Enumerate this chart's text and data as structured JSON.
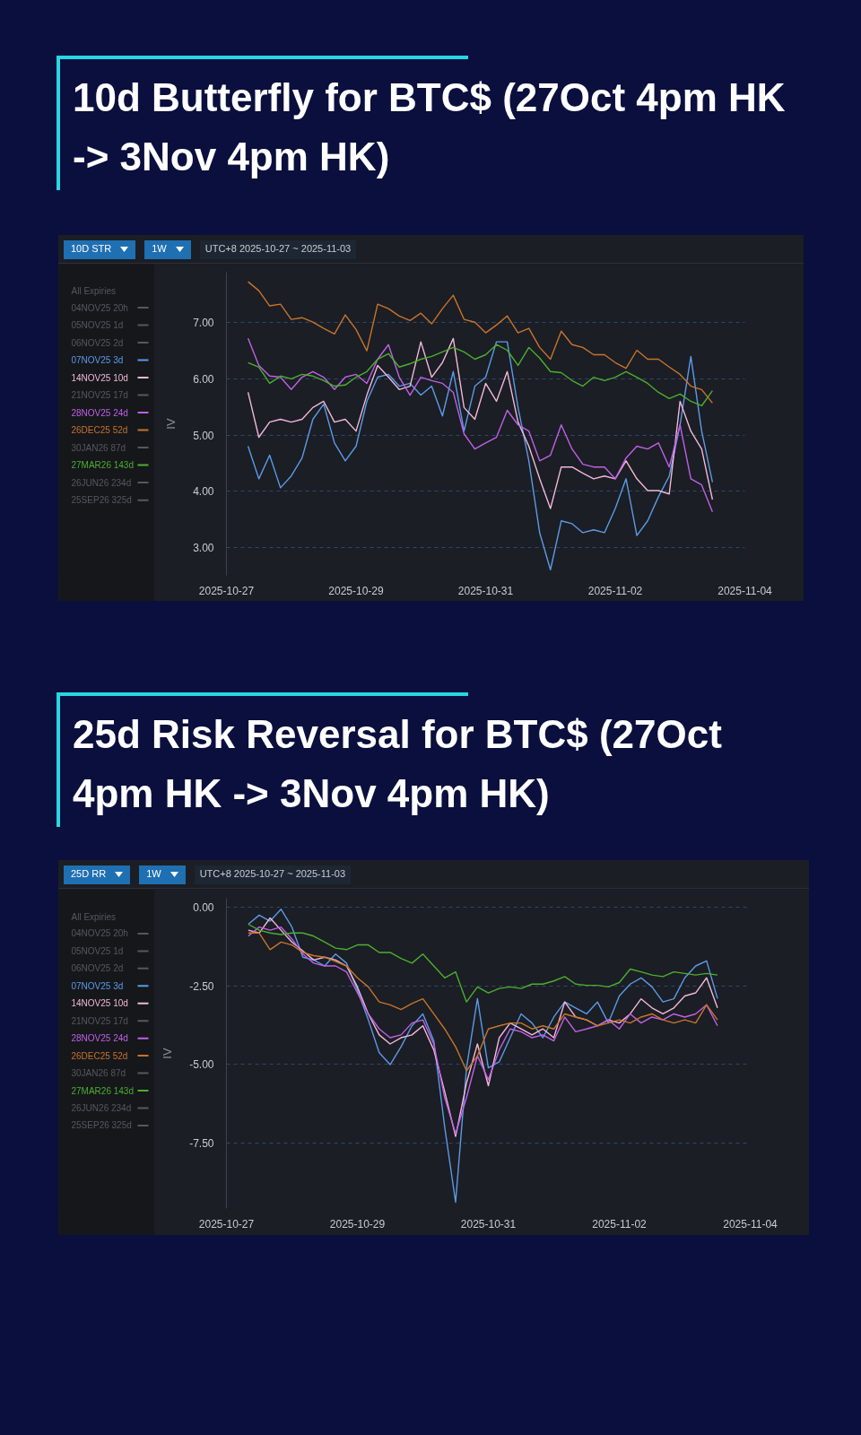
{
  "chart_data": [
    {
      "type": "line",
      "title": "10d Butterfly for BTC$ (27Oct 4pm HK -> 3Nov 4pm HK)",
      "ylabel": "IV",
      "annotations": [
        "10D STR",
        "1W",
        "UTC+8 2025-10-27 ~ 2025-11-03",
        "All Expiries"
      ],
      "x": [
        "2025-10-27T08:00",
        "2025-10-27T12:00",
        "2025-10-27T16:00",
        "2025-10-27T20:00",
        "2025-10-28T00:00",
        "2025-10-28T04:00",
        "2025-10-28T08:00",
        "2025-10-28T12:00",
        "2025-10-28T16:00",
        "2025-10-28T20:00",
        "2025-10-29T00:00",
        "2025-10-29T04:00",
        "2025-10-29T08:00",
        "2025-10-29T12:00",
        "2025-10-29T16:00",
        "2025-10-29T20:00",
        "2025-10-30T00:00",
        "2025-10-30T04:00",
        "2025-10-30T08:00",
        "2025-10-30T12:00",
        "2025-10-30T16:00",
        "2025-10-30T20:00",
        "2025-10-31T00:00",
        "2025-10-31T04:00",
        "2025-10-31T08:00",
        "2025-10-31T12:00",
        "2025-10-31T16:00",
        "2025-10-31T20:00",
        "2025-11-01T00:00",
        "2025-11-01T04:00",
        "2025-11-01T08:00",
        "2025-11-01T12:00",
        "2025-11-01T16:00",
        "2025-11-01T20:00",
        "2025-11-02T00:00",
        "2025-11-02T04:00",
        "2025-11-02T08:00",
        "2025-11-02T12:00",
        "2025-11-02T16:00",
        "2025-11-02T20:00",
        "2025-11-03T00:00",
        "2025-11-03T04:00",
        "2025-11-03T08:00",
        "2025-11-03T12:00"
      ],
      "xlim": [
        "2025-10-27",
        "2025-11-04"
      ],
      "xticks": [
        "2025-10-27",
        "2025-10-29",
        "2025-10-31",
        "2025-11-02",
        "2025-11-04"
      ],
      "ylim": [
        2.5,
        7.9
      ],
      "yticks": [
        {
          "value": 3,
          "label": "3.00"
        },
        {
          "value": 4,
          "label": "4.00"
        },
        {
          "value": 5,
          "label": "5.00"
        },
        {
          "value": 6,
          "label": "6.00"
        },
        {
          "value": 7,
          "label": "7.00"
        }
      ],
      "grid": "y",
      "legend": "left",
      "series": [
        {
          "name": "04NOV25 20h",
          "color": "#55585f",
          "values": [
            null,
            null,
            null,
            null,
            null,
            null,
            null,
            null,
            null,
            null,
            null,
            null,
            null,
            null,
            null,
            null,
            null,
            null,
            null,
            null,
            null,
            null,
            null,
            null,
            null,
            null,
            null,
            null,
            null,
            null,
            null,
            null,
            null,
            null,
            null,
            null,
            null,
            null,
            null,
            null,
            null,
            null,
            null,
            null
          ]
        },
        {
          "name": "05NOV25 1d",
          "color": "#55585f",
          "values": [
            null,
            null,
            null,
            null,
            null,
            null,
            null,
            null,
            null,
            null,
            null,
            null,
            null,
            null,
            null,
            null,
            null,
            null,
            null,
            null,
            null,
            null,
            null,
            null,
            null,
            null,
            null,
            null,
            null,
            null,
            null,
            null,
            null,
            null,
            null,
            null,
            null,
            null,
            null,
            null,
            null,
            null,
            null,
            null
          ]
        },
        {
          "name": "06NOV25 2d",
          "color": "#55585f",
          "values": [
            null,
            null,
            null,
            null,
            null,
            null,
            null,
            null,
            null,
            null,
            null,
            null,
            null,
            null,
            null,
            null,
            null,
            null,
            null,
            null,
            null,
            null,
            null,
            null,
            null,
            null,
            null,
            null,
            null,
            null,
            null,
            null,
            null,
            null,
            null,
            null,
            null,
            null,
            null,
            null,
            null,
            null,
            null,
            null
          ]
        },
        {
          "name": "07NOV25 3d",
          "color": "#5b9ae8",
          "values": [
            4.8,
            4.22,
            4.64,
            4.06,
            4.27,
            4.59,
            5.28,
            5.55,
            4.86,
            4.54,
            4.8,
            5.6,
            6.03,
            6.08,
            5.87,
            5.92,
            5.71,
            5.87,
            5.34,
            6.13,
            5.07,
            5.87,
            6.03,
            6.66,
            6.66,
            5.49,
            4.54,
            3.26,
            2.6,
            3.47,
            3.42,
            3.26,
            3.31,
            3.26,
            3.69,
            4.22,
            3.21,
            3.47,
            3.9,
            4.27,
            5.18,
            6.4,
            5.07,
            4.16
          ]
        },
        {
          "name": "14NOV25 10d",
          "color": "#f2b8d8",
          "values": [
            5.76,
            4.96,
            5.23,
            5.28,
            5.23,
            5.28,
            5.49,
            5.6,
            5.23,
            5.28,
            5.07,
            5.71,
            6.24,
            6.03,
            5.81,
            5.87,
            6.66,
            6.03,
            6.29,
            6.72,
            5.49,
            5.28,
            5.92,
            5.6,
            6.13,
            5.23,
            4.8,
            4.22,
            3.69,
            4.43,
            4.43,
            4.32,
            4.22,
            4.27,
            4.22,
            4.54,
            4.22,
            4.01,
            4.01,
            3.95,
            5.6,
            5.07,
            4.75,
            3.85
          ]
        },
        {
          "name": "21NOV25 17d",
          "color": "#55585f",
          "values": [
            null,
            null,
            null,
            null,
            null,
            null,
            null,
            null,
            null,
            null,
            null,
            null,
            null,
            null,
            null,
            null,
            null,
            null,
            null,
            null,
            null,
            null,
            null,
            null,
            null,
            null,
            null,
            null,
            null,
            null,
            null,
            null,
            null,
            null,
            null,
            null,
            null,
            null,
            null,
            null,
            null,
            null,
            null,
            null
          ]
        },
        {
          "name": "28NOV25 24d",
          "color": "#c060e6",
          "values": [
            6.72,
            6.24,
            6.05,
            6.03,
            5.81,
            6.03,
            6.13,
            6.03,
            5.81,
            6.03,
            6.08,
            5.92,
            6.35,
            6.61,
            6.03,
            5.71,
            6.03,
            5.97,
            5.92,
            5.76,
            5.02,
            4.75,
            4.86,
            4.96,
            5.44,
            5.18,
            5.07,
            4.54,
            4.64,
            5.18,
            4.75,
            4.48,
            4.43,
            4.43,
            4.22,
            4.59,
            4.8,
            4.75,
            4.86,
            4.43,
            5.18,
            4.22,
            4.11,
            3.63
          ]
        },
        {
          "name": "26DEC25 52d",
          "color": "#c8742c",
          "values": [
            7.73,
            7.57,
            7.3,
            7.33,
            7.06,
            7.09,
            7.01,
            6.9,
            6.8,
            7.14,
            6.88,
            6.5,
            7.33,
            7.25,
            7.12,
            7.04,
            7.17,
            6.98,
            7.25,
            7.49,
            7.06,
            7.01,
            6.82,
            6.96,
            7.12,
            6.82,
            6.9,
            6.56,
            6.35,
            6.85,
            6.61,
            6.56,
            6.43,
            6.43,
            6.29,
            6.19,
            6.51,
            6.35,
            6.35,
            6.21,
            6.08,
            5.87,
            5.81,
            5.57
          ]
        },
        {
          "name": "30JAN26 87d",
          "color": "#55585f",
          "values": [
            null,
            null,
            null,
            null,
            null,
            null,
            null,
            null,
            null,
            null,
            null,
            null,
            null,
            null,
            null,
            null,
            null,
            null,
            null,
            null,
            null,
            null,
            null,
            null,
            null,
            null,
            null,
            null,
            null,
            null,
            null,
            null,
            null,
            null,
            null,
            null,
            null,
            null,
            null,
            null,
            null,
            null,
            null,
            null
          ]
        },
        {
          "name": "27MAR26 143d",
          "color": "#4cae2e",
          "values": [
            6.29,
            6.21,
            5.92,
            6.05,
            6.0,
            6.08,
            6.05,
            5.97,
            5.87,
            5.89,
            6.03,
            6.13,
            6.35,
            6.45,
            6.21,
            6.27,
            6.35,
            6.4,
            6.48,
            6.56,
            6.48,
            6.35,
            6.43,
            6.61,
            6.51,
            6.24,
            6.56,
            6.37,
            6.13,
            6.11,
            5.97,
            5.87,
            6.03,
            5.97,
            6.03,
            6.13,
            6.03,
            5.92,
            5.76,
            5.65,
            5.73,
            5.6,
            5.52,
            5.79
          ]
        },
        {
          "name": "26JUN26 234d",
          "color": "#55585f",
          "values": [
            null,
            null,
            null,
            null,
            null,
            null,
            null,
            null,
            null,
            null,
            null,
            null,
            null,
            null,
            null,
            null,
            null,
            null,
            null,
            null,
            null,
            null,
            null,
            null,
            null,
            null,
            null,
            null,
            null,
            null,
            null,
            null,
            null,
            null,
            null,
            null,
            null,
            null,
            null,
            null,
            null,
            null,
            null,
            null
          ]
        },
        {
          "name": "25SEP26 325d",
          "color": "#55585f",
          "values": [
            null,
            null,
            null,
            null,
            null,
            null,
            null,
            null,
            null,
            null,
            null,
            null,
            null,
            null,
            null,
            null,
            null,
            null,
            null,
            null,
            null,
            null,
            null,
            null,
            null,
            null,
            null,
            null,
            null,
            null,
            null,
            null,
            null,
            null,
            null,
            null,
            null,
            null,
            null,
            null,
            null,
            null,
            null,
            null
          ]
        }
      ]
    },
    {
      "type": "line",
      "title": "25d Risk Reversal for BTC$ (27Oct 4pm HK -> 3Nov 4pm HK)",
      "ylabel": "IV",
      "annotations": [
        "25D RR",
        "1W",
        "UTC+8 2025-10-27 ~ 2025-11-03",
        "All Expiries"
      ],
      "x": [
        "2025-10-27T08:00",
        "2025-10-27T12:00",
        "2025-10-27T16:00",
        "2025-10-27T20:00",
        "2025-10-28T00:00",
        "2025-10-28T04:00",
        "2025-10-28T08:00",
        "2025-10-28T12:00",
        "2025-10-28T16:00",
        "2025-10-28T20:00",
        "2025-10-29T00:00",
        "2025-10-29T04:00",
        "2025-10-29T08:00",
        "2025-10-29T12:00",
        "2025-10-29T16:00",
        "2025-10-29T20:00",
        "2025-10-30T00:00",
        "2025-10-30T04:00",
        "2025-10-30T08:00",
        "2025-10-30T12:00",
        "2025-10-30T16:00",
        "2025-10-30T20:00",
        "2025-10-31T00:00",
        "2025-10-31T04:00",
        "2025-10-31T08:00",
        "2025-10-31T12:00",
        "2025-10-31T16:00",
        "2025-10-31T20:00",
        "2025-11-01T00:00",
        "2025-11-01T04:00",
        "2025-11-01T08:00",
        "2025-11-01T12:00",
        "2025-11-01T16:00",
        "2025-11-01T20:00",
        "2025-11-02T00:00",
        "2025-11-02T04:00",
        "2025-11-02T08:00",
        "2025-11-02T12:00",
        "2025-11-02T16:00",
        "2025-11-02T20:00",
        "2025-11-03T00:00",
        "2025-11-03T04:00",
        "2025-11-03T08:00",
        "2025-11-03T12:00"
      ],
      "xlim": [
        "2025-10-27",
        "2025-11-04"
      ],
      "xticks": [
        "2025-10-27",
        "2025-10-29",
        "2025-10-31",
        "2025-11-02",
        "2025-11-04"
      ],
      "ylim": [
        -9.6,
        0.3
      ],
      "yticks": [
        {
          "value": -7.5,
          "label": "-7.50"
        },
        {
          "value": -5,
          "label": "-5.00"
        },
        {
          "value": -2.5,
          "label": "-2.50"
        },
        {
          "value": 0,
          "label": "0.00"
        }
      ],
      "grid": "y",
      "legend": "left",
      "series": [
        {
          "name": "04NOV25 20h",
          "color": "#55585f",
          "values": [
            null,
            null,
            null,
            null,
            null,
            null,
            null,
            null,
            null,
            null,
            null,
            null,
            null,
            null,
            null,
            null,
            null,
            null,
            null,
            null,
            null,
            null,
            null,
            null,
            null,
            null,
            null,
            null,
            null,
            null,
            null,
            null,
            null,
            null,
            null,
            null,
            null,
            null,
            null,
            null,
            null,
            null,
            null,
            null
          ]
        },
        {
          "name": "05NOV25 1d",
          "color": "#55585f",
          "values": [
            null,
            null,
            null,
            null,
            null,
            null,
            null,
            null,
            null,
            null,
            null,
            null,
            null,
            null,
            null,
            null,
            null,
            null,
            null,
            null,
            null,
            null,
            null,
            null,
            null,
            null,
            null,
            null,
            null,
            null,
            null,
            null,
            null,
            null,
            null,
            null,
            null,
            null,
            null,
            null,
            null,
            null,
            null,
            null
          ]
        },
        {
          "name": "06NOV25 2d",
          "color": "#55585f",
          "values": [
            null,
            null,
            null,
            null,
            null,
            null,
            null,
            null,
            null,
            null,
            null,
            null,
            null,
            null,
            null,
            null,
            null,
            null,
            null,
            null,
            null,
            null,
            null,
            null,
            null,
            null,
            null,
            null,
            null,
            null,
            null,
            null,
            null,
            null,
            null,
            null,
            null,
            null,
            null,
            null,
            null,
            null,
            null,
            null
          ]
        },
        {
          "name": "07NOV25 3d",
          "color": "#5b9ae8",
          "values": [
            -0.53,
            -0.24,
            -0.43,
            -0.05,
            -0.62,
            -1.58,
            -1.67,
            -1.86,
            -1.48,
            -1.77,
            -2.63,
            -3.58,
            -4.63,
            -5.01,
            -4.44,
            -3.77,
            -3.39,
            -4.25,
            -7.0,
            -9.4,
            -5.11,
            -2.9,
            -5.11,
            -4.92,
            -4.15,
            -3.39,
            -3.68,
            -4.15,
            -3.49,
            -3.01,
            -3.2,
            -3.39,
            -3.01,
            -3.68,
            -2.82,
            -2.44,
            -2.24,
            -2.53,
            -3.01,
            -2.91,
            -2.24,
            -1.86,
            -1.7,
            -2.9
          ]
        },
        {
          "name": "14NOV25 10d",
          "color": "#f2b8d8",
          "values": [
            -0.72,
            -0.81,
            -0.33,
            -0.72,
            -1.1,
            -1.38,
            -1.67,
            -1.58,
            -1.67,
            -1.86,
            -2.53,
            -3.39,
            -4.06,
            -4.35,
            -4.15,
            -4.06,
            -3.77,
            -4.54,
            -5.87,
            -7.3,
            -5.59,
            -4.35,
            -5.68,
            -4.15,
            -3.68,
            -3.87,
            -4.06,
            -3.87,
            -4.15,
            -3.01,
            -3.49,
            -3.58,
            -3.77,
            -3.58,
            -3.68,
            -3.39,
            -2.91,
            -3.2,
            -3.39,
            -3.2,
            -2.82,
            -2.72,
            -2.24,
            -3.2
          ]
        },
        {
          "name": "21NOV25 17d",
          "color": "#55585f",
          "values": [
            null,
            null,
            null,
            null,
            null,
            null,
            null,
            null,
            null,
            null,
            null,
            null,
            null,
            null,
            null,
            null,
            null,
            null,
            null,
            null,
            null,
            null,
            null,
            null,
            null,
            null,
            null,
            null,
            null,
            null,
            null,
            null,
            null,
            null,
            null,
            null,
            null,
            null,
            null,
            null,
            null,
            null,
            null,
            null
          ]
        },
        {
          "name": "28NOV25 24d",
          "color": "#c060e6",
          "values": [
            -0.91,
            -0.62,
            -0.72,
            -0.62,
            -1.0,
            -1.48,
            -1.77,
            -1.86,
            -1.86,
            -2.05,
            -2.72,
            -3.39,
            -3.87,
            -4.15,
            -4.06,
            -3.68,
            -3.58,
            -4.35,
            -6.06,
            -7.21,
            -6.06,
            -4.73,
            -5.49,
            -4.54,
            -3.87,
            -3.96,
            -4.15,
            -4.06,
            -4.25,
            -3.49,
            -3.96,
            -3.87,
            -3.77,
            -3.58,
            -3.87,
            -3.39,
            -3.68,
            -3.49,
            -3.58,
            -3.39,
            -3.49,
            -3.39,
            -3.1,
            -3.77
          ]
        },
        {
          "name": "26DEC25 52d",
          "color": "#c8742c",
          "values": [
            -0.81,
            -0.81,
            -1.34,
            -1.1,
            -1.19,
            -1.43,
            -1.53,
            -1.58,
            -1.72,
            -1.86,
            -2.24,
            -2.53,
            -3.01,
            -3.1,
            -3.25,
            -3.06,
            -2.91,
            -3.39,
            -3.87,
            -4.44,
            -5.2,
            -4.73,
            -3.87,
            -3.77,
            -3.68,
            -3.68,
            -3.87,
            -3.77,
            -3.87,
            -3.39,
            -3.49,
            -3.58,
            -3.77,
            -3.68,
            -3.58,
            -3.68,
            -3.49,
            -3.39,
            -3.58,
            -3.68,
            -3.58,
            -3.68,
            -3.1,
            -3.58
          ]
        },
        {
          "name": "30JAN26 87d",
          "color": "#55585f",
          "values": [
            null,
            null,
            null,
            null,
            null,
            null,
            null,
            null,
            null,
            null,
            null,
            null,
            null,
            null,
            null,
            null,
            null,
            null,
            null,
            null,
            null,
            null,
            null,
            null,
            null,
            null,
            null,
            null,
            null,
            null,
            null,
            null,
            null,
            null,
            null,
            null,
            null,
            null,
            null,
            null,
            null,
            null,
            null,
            null
          ]
        },
        {
          "name": "27MAR26 143d",
          "color": "#4cae2e",
          "values": [
            -0.53,
            -0.72,
            -0.81,
            -0.86,
            -0.81,
            -0.81,
            -0.91,
            -1.1,
            -1.29,
            -1.34,
            -1.19,
            -1.19,
            -1.43,
            -1.43,
            -1.62,
            -1.77,
            -1.48,
            -1.86,
            -2.24,
            -2.05,
            -3.01,
            -2.53,
            -2.72,
            -2.58,
            -2.53,
            -2.58,
            -2.44,
            -2.44,
            -2.34,
            -2.2,
            -2.44,
            -2.48,
            -2.48,
            -2.53,
            -2.39,
            -1.96,
            -2.05,
            -2.15,
            -2.2,
            -2.05,
            -2.1,
            -2.15,
            -2.1,
            -2.15
          ]
        },
        {
          "name": "26JUN26 234d",
          "color": "#55585f",
          "values": [
            null,
            null,
            null,
            null,
            null,
            null,
            null,
            null,
            null,
            null,
            null,
            null,
            null,
            null,
            null,
            null,
            null,
            null,
            null,
            null,
            null,
            null,
            null,
            null,
            null,
            null,
            null,
            null,
            null,
            null,
            null,
            null,
            null,
            null,
            null,
            null,
            null,
            null,
            null,
            null,
            null,
            null,
            null,
            null
          ]
        },
        {
          "name": "25SEP26 325d",
          "color": "#55585f",
          "values": [
            null,
            null,
            null,
            null,
            null,
            null,
            null,
            null,
            null,
            null,
            null,
            null,
            null,
            null,
            null,
            null,
            null,
            null,
            null,
            null,
            null,
            null,
            null,
            null,
            null,
            null,
            null,
            null,
            null,
            null,
            null,
            null,
            null,
            null,
            null,
            null,
            null,
            null,
            null,
            null,
            null,
            null,
            null,
            null
          ]
        }
      ]
    }
  ]
}
